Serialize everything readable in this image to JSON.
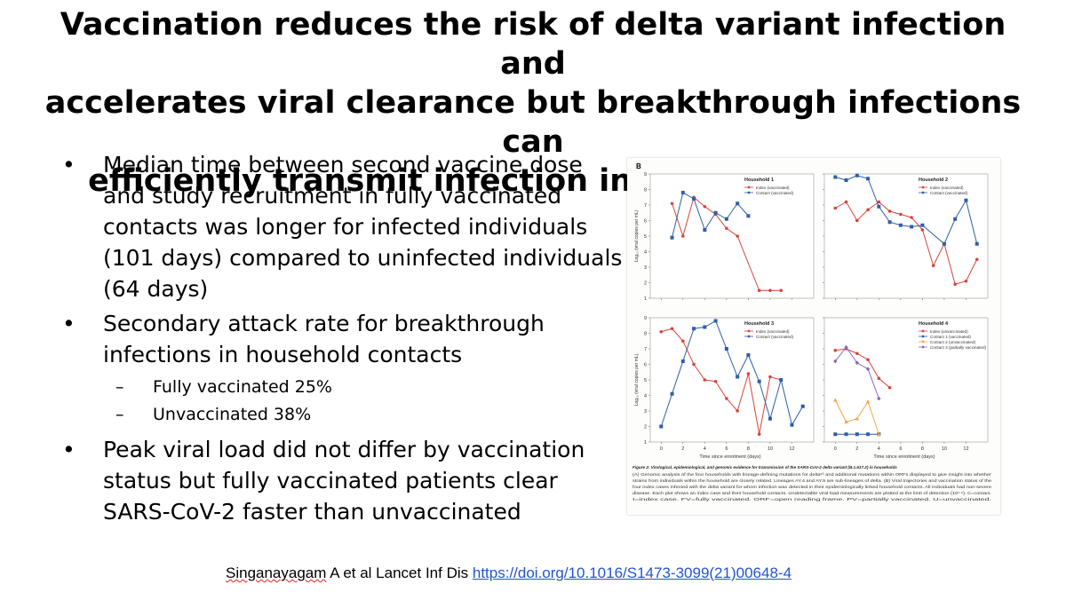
{
  "slide": {
    "title_lines": [
      "Vaccination reduces the risk of delta variant infection and",
      "accelerates viral clearance but breakthrough infections can",
      "efficiently transmit infection in household settings"
    ],
    "bullets": [
      {
        "text": "Median time between second vaccine dose and study recruitment in fully vaccinated contacts was longer for infected individuals (101 days) compared to uninfected individuals (64 days)",
        "subs": []
      },
      {
        "text": "Secondary attack rate for breakthrough infections in household contacts",
        "subs": [
          "Fully vaccinated 25%",
          "Unvaccinated 38%"
        ]
      },
      {
        "text": "Peak viral load did not differ by vaccination status but fully vaccinated patients clear SARS-CoV-2 faster than unvaccinated",
        "subs": []
      }
    ],
    "bullet_symbol": "•",
    "sub_symbol": "–",
    "citation": {
      "author_text": "Singanayagam",
      "rest_text": " A et al Lancet Inf Dis ",
      "link_text": "https://doi.org/10.1016/S1473-3099(21)00648-4"
    }
  },
  "figure": {
    "panel_label": "B",
    "ylabel_top": "Log₁₀ (viral copies per mL)",
    "ylabel_bottom": "Log₁₀ (viral copies per mL)",
    "xlabel": "Time since enrolment (days)",
    "caption_title": "Figure 2: Virological, epidemiological, and genomic evidence for transmission of the SARS-CoV-2 delta variant (B.1.617.2) in households",
    "caption_lines": [
      "(A) Genomic analysis of the four households with lineage-defining mutations for delta²⁰ and additional mutations within ORFs displayed to give insight into whether",
      "strains from individuals within the household are closely related. Lineages AY.4 and AY.9 are sub-lineages of delta. (B) Viral trajectories and vaccination status of the",
      "four index cases infected with the delta variant for whom infection was detected in their epidemiologically linked household contacts. All individuals had non-severe",
      "disease. Each plot shows an index case and their household contacts. Undetectable viral load measurements are plotted at the limit of detection (10¹·⁵). C=contact.",
      "I=index case. FV=fully vaccinated. ORF=open reading frame. PV=partially vaccinated. U=unvaccinated."
    ]
  },
  "chart_data": [
    {
      "type": "line",
      "title": "Household 1",
      "ylim": [
        1,
        9
      ],
      "xlim": [
        -1,
        14
      ],
      "y_ticks": [
        1,
        2,
        3,
        4,
        5,
        6,
        7,
        8,
        9
      ],
      "x_ticks": [
        0,
        2,
        4,
        6,
        8,
        10,
        12
      ],
      "legend_position": "top-right",
      "series": [
        {
          "name": "Index (vaccinated)",
          "color": "#d6453b",
          "marker": "circle",
          "points": [
            [
              1,
              7.1
            ],
            [
              2,
              5.0
            ],
            [
              3,
              7.5
            ],
            [
              4,
              6.9
            ],
            [
              5,
              6.4
            ],
            [
              6,
              5.5
            ],
            [
              7,
              5.0
            ],
            [
              9,
              1.5
            ],
            [
              10,
              1.5
            ],
            [
              11,
              1.5
            ]
          ]
        },
        {
          "name": "Contact (vaccinated)",
          "color": "#2e5ea8",
          "marker": "square",
          "points": [
            [
              1,
              4.9
            ],
            [
              2,
              7.8
            ],
            [
              3,
              7.4
            ],
            [
              4,
              5.4
            ],
            [
              5,
              6.5
            ],
            [
              6,
              6.1
            ],
            [
              7,
              7.1
            ],
            [
              8,
              6.3
            ]
          ]
        }
      ]
    },
    {
      "type": "line",
      "title": "Household 2",
      "ylim": [
        1,
        9
      ],
      "xlim": [
        -1,
        14
      ],
      "y_ticks": [
        1,
        2,
        3,
        4,
        5,
        6,
        7,
        8,
        9
      ],
      "x_ticks": [
        0,
        2,
        4,
        6,
        8,
        10,
        12
      ],
      "legend_position": "top-right",
      "series": [
        {
          "name": "Index (vaccinated)",
          "color": "#d6453b",
          "marker": "circle",
          "points": [
            [
              0,
              6.8
            ],
            [
              1,
              7.2
            ],
            [
              2,
              6.0
            ],
            [
              3,
              6.7
            ],
            [
              4,
              7.2
            ],
            [
              5,
              6.6
            ],
            [
              6,
              6.4
            ],
            [
              7,
              6.2
            ],
            [
              8,
              5.4
            ],
            [
              9,
              3.1
            ],
            [
              10,
              4.5
            ],
            [
              11,
              1.9
            ],
            [
              12,
              2.1
            ],
            [
              13,
              3.5
            ]
          ]
        },
        {
          "name": "Contact (vaccinated)",
          "color": "#2e5ea8",
          "marker": "square",
          "points": [
            [
              0,
              8.8
            ],
            [
              1,
              8.6
            ],
            [
              2,
              8.9
            ],
            [
              3,
              8.7
            ],
            [
              4,
              6.9
            ],
            [
              5,
              5.9
            ],
            [
              6,
              5.7
            ],
            [
              7,
              5.6
            ],
            [
              8,
              5.7
            ],
            [
              10,
              4.5
            ],
            [
              11,
              6.1
            ],
            [
              12,
              7.3
            ],
            [
              13,
              4.5
            ]
          ]
        }
      ]
    },
    {
      "type": "line",
      "title": "Household 3",
      "ylim": [
        1,
        9
      ],
      "xlim": [
        -1,
        14
      ],
      "y_ticks": [
        1,
        2,
        3,
        4,
        5,
        6,
        7,
        8,
        9
      ],
      "x_ticks": [
        0,
        2,
        4,
        6,
        8,
        10,
        12
      ],
      "legend_position": "top-right",
      "series": [
        {
          "name": "Index (vaccinated)",
          "color": "#d6453b",
          "marker": "circle",
          "points": [
            [
              0,
              8.1
            ],
            [
              1,
              8.3
            ],
            [
              2,
              7.5
            ],
            [
              3,
              6.0
            ],
            [
              4,
              5.0
            ],
            [
              5,
              4.9
            ],
            [
              6,
              3.8
            ],
            [
              7,
              3.0
            ],
            [
              8,
              5.4
            ],
            [
              9,
              1.5
            ],
            [
              10,
              5.2
            ],
            [
              11,
              5.0
            ]
          ]
        },
        {
          "name": "Contact (vaccinated)",
          "color": "#2e5ea8",
          "marker": "square",
          "points": [
            [
              0,
              2.0
            ],
            [
              1,
              4.1
            ],
            [
              2,
              6.2
            ],
            [
              3,
              8.3
            ],
            [
              4,
              8.4
            ],
            [
              5,
              8.8
            ],
            [
              6,
              7.0
            ],
            [
              7,
              5.2
            ],
            [
              8,
              6.6
            ],
            [
              9,
              4.9
            ],
            [
              10,
              2.5
            ],
            [
              11,
              5.0
            ],
            [
              12,
              2.1
            ],
            [
              13,
              3.3
            ]
          ]
        }
      ]
    },
    {
      "type": "line",
      "title": "Household 4",
      "ylim": [
        1,
        9
      ],
      "xlim": [
        -1,
        14
      ],
      "y_ticks": [
        1,
        2,
        3,
        4,
        5,
        6,
        7,
        8,
        9
      ],
      "x_ticks": [
        0,
        2,
        4,
        6,
        8,
        10,
        12
      ],
      "legend_position": "top-right",
      "series": [
        {
          "name": "Index (unvaccinated)",
          "color": "#d6453b",
          "marker": "circle",
          "points": [
            [
              0,
              6.9
            ],
            [
              1,
              7.0
            ],
            [
              2,
              6.7
            ],
            [
              3,
              6.3
            ],
            [
              4,
              5.1
            ],
            [
              5,
              4.5
            ]
          ]
        },
        {
          "name": "Contact 1 (vaccinated)",
          "color": "#2e5ea8",
          "marker": "square",
          "points": [
            [
              0,
              1.5
            ],
            [
              1,
              1.5
            ],
            [
              2,
              1.5
            ],
            [
              3,
              1.5
            ],
            [
              4,
              1.5
            ]
          ]
        },
        {
          "name": "Contact 2 (unvaccinated)",
          "color": "#f0a54a",
          "marker": "triangle",
          "points": [
            [
              0,
              3.7
            ],
            [
              1,
              2.3
            ],
            [
              2,
              2.5
            ],
            [
              3,
              3.6
            ],
            [
              4,
              1.5
            ]
          ]
        },
        {
          "name": "Contact 3 (partially vaccinated)",
          "color": "#8a68b8",
          "marker": "diamond",
          "points": [
            [
              0,
              6.2
            ],
            [
              1,
              7.1
            ],
            [
              2,
              6.1
            ],
            [
              3,
              5.7
            ],
            [
              4,
              3.8
            ]
          ]
        }
      ]
    }
  ]
}
